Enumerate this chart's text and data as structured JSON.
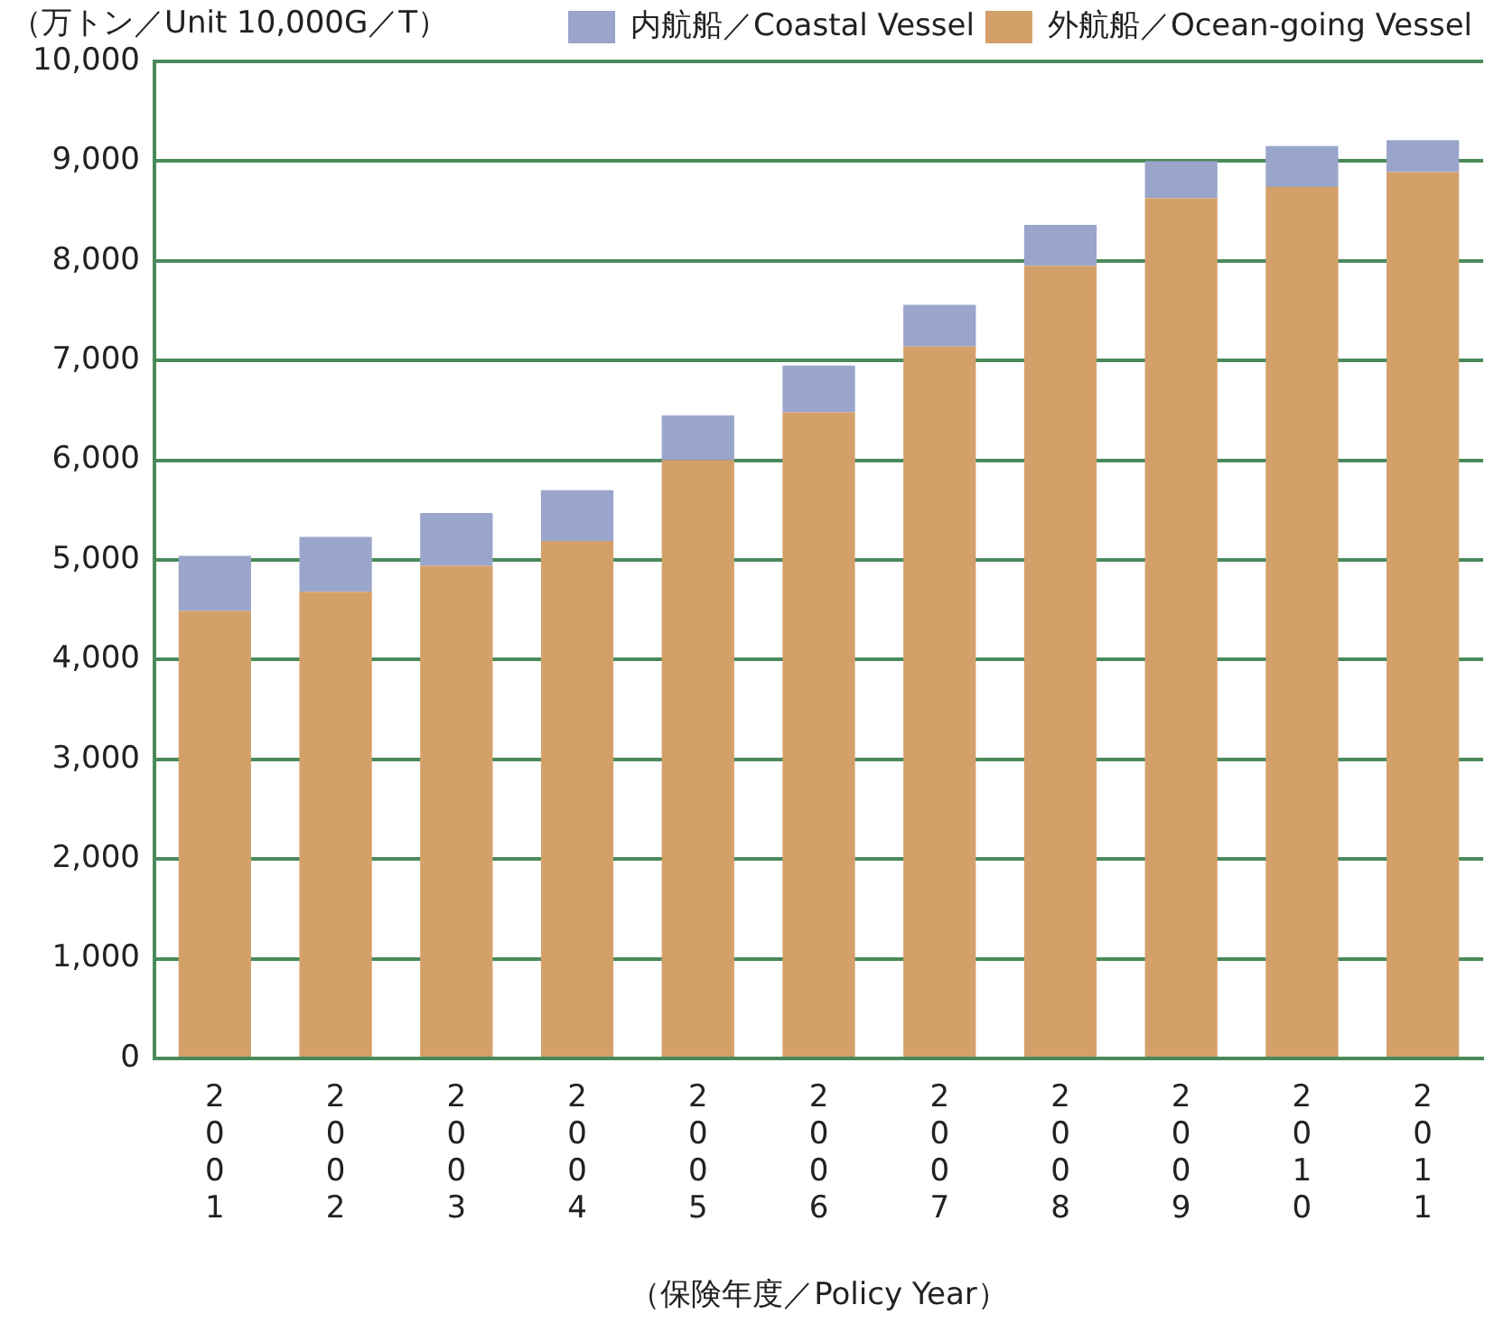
{
  "chart_data": {
    "type": "bar",
    "stacked": true,
    "ylabel": "（万トン／Unit 10,000G／T）",
    "xlabel": "（保険年度／Policy Year）",
    "categories": [
      "2001",
      "2002",
      "2003",
      "2004",
      "2005",
      "2006",
      "2007",
      "2008",
      "2009",
      "2010",
      "2011"
    ],
    "series": [
      {
        "name": "外航船／Ocean-going Vessel",
        "color": "#d4a06a",
        "values": [
          4490,
          4680,
          4940,
          5190,
          6000,
          6480,
          7140,
          7950,
          8630,
          8740,
          8890
        ]
      },
      {
        "name": "内航船／Coastal Vessel",
        "color": "#9aa5cc",
        "values": [
          550,
          550,
          530,
          510,
          450,
          470,
          420,
          410,
          370,
          410,
          320
        ]
      }
    ],
    "ylim": [
      0,
      10000
    ],
    "yticks": [
      0,
      {
        "value": 1000,
        "label": "1,000"
      },
      {
        "value": 2000,
        "label": "2,000"
      },
      {
        "value": 3000,
        "label": "3,000"
      },
      {
        "value": 4000,
        "label": "4,000"
      },
      {
        "value": 5000,
        "label": "5,000"
      },
      {
        "value": 6000,
        "label": "6,000"
      },
      {
        "value": 7000,
        "label": "7,000"
      },
      {
        "value": 8000,
        "label": "8,000"
      },
      {
        "value": 9000,
        "label": "9,000"
      },
      {
        "value": 10000,
        "label": "10,000"
      }
    ],
    "grid": "y",
    "legend": "top right"
  }
}
